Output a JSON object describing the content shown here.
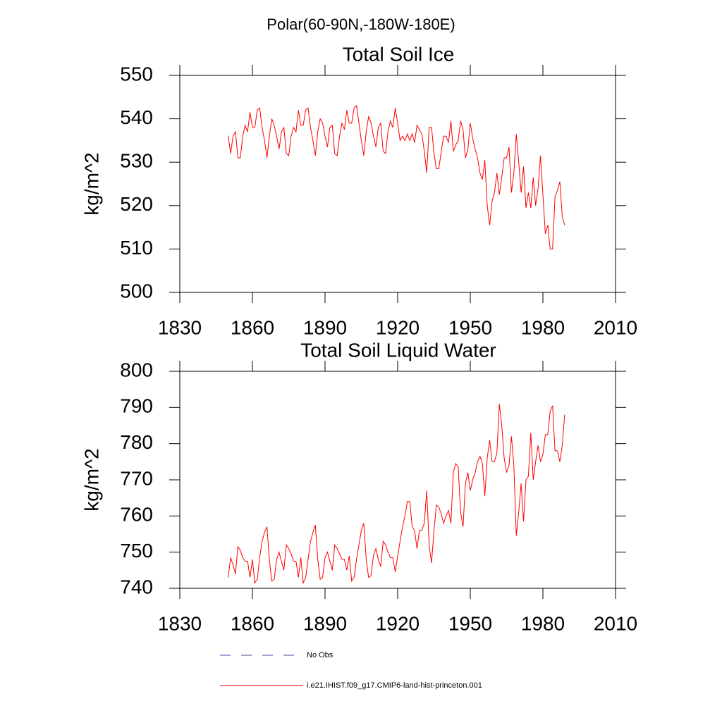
{
  "title": "Polar(60-90N,-180W-180E)",
  "legend": [
    {
      "name": "No Obs",
      "color": "#3b4ba0",
      "dashed": true
    },
    {
      "name": "i.e21.IHIST.f09_g17.CMIP6-land-hist-princeton.001",
      "color": "#ff0000",
      "dashed": false
    }
  ],
  "chart_data": [
    {
      "type": "line",
      "title": "Total Soil Ice",
      "y_label": "kg/m^2",
      "xlim": [
        1830,
        2010
      ],
      "xticks": [
        1830,
        1860,
        1890,
        1920,
        1950,
        1980,
        2010
      ],
      "ylim": [
        500,
        550
      ],
      "yticks": [
        500,
        510,
        520,
        530,
        540,
        550
      ],
      "x": [
        1850,
        1851,
        1852,
        1853,
        1854,
        1855,
        1856,
        1857,
        1858,
        1859,
        1860,
        1861,
        1862,
        1863,
        1864,
        1865,
        1866,
        1867,
        1868,
        1869,
        1870,
        1871,
        1872,
        1873,
        1874,
        1875,
        1876,
        1877,
        1878,
        1879,
        1880,
        1881,
        1882,
        1883,
        1884,
        1885,
        1886,
        1887,
        1888,
        1889,
        1890,
        1891,
        1892,
        1893,
        1894,
        1895,
        1896,
        1897,
        1898,
        1899,
        1900,
        1901,
        1902,
        1903,
        1904,
        1905,
        1906,
        1907,
        1908,
        1909,
        1910,
        1911,
        1912,
        1913,
        1914,
        1915,
        1916,
        1917,
        1918,
        1919,
        1920,
        1921,
        1922,
        1923,
        1924,
        1925,
        1926,
        1927,
        1928,
        1929,
        1930,
        1931,
        1932,
        1933,
        1934,
        1935,
        1936,
        1937,
        1938,
        1939,
        1940,
        1941,
        1942,
        1943,
        1944,
        1945,
        1946,
        1947,
        1948,
        1949,
        1950,
        1951,
        1952,
        1953,
        1954,
        1955,
        1956,
        1957,
        1958,
        1959,
        1960,
        1961,
        1962,
        1963,
        1964,
        1965,
        1966,
        1967,
        1968,
        1969,
        1970,
        1971,
        1972,
        1973,
        1974,
        1975,
        1976,
        1977,
        1978,
        1979,
        1980,
        1981,
        1982,
        1983,
        1984,
        1985,
        1986,
        1987,
        1988,
        1989
      ],
      "series": [
        {
          "color": "#ff0000",
          "values": [
            536,
            532,
            536,
            537,
            531,
            531,
            536,
            538.5,
            537,
            541.5,
            538,
            538,
            542,
            542.5,
            538,
            535,
            531,
            536,
            540,
            538.5,
            536,
            533,
            537,
            538,
            532,
            531.5,
            536,
            538,
            537,
            542,
            538.5,
            538.5,
            542,
            542.5,
            538,
            535,
            531.5,
            537,
            540,
            539,
            536,
            533.5,
            538,
            538.5,
            532,
            531.5,
            536,
            539,
            537.5,
            542,
            539,
            539,
            542.5,
            543,
            539,
            535,
            531.5,
            537,
            540.5,
            539,
            536,
            533.5,
            538,
            539,
            532.5,
            532,
            537,
            539.5,
            538,
            542.5,
            539,
            535,
            536,
            535,
            536.5,
            535,
            536.5,
            534.5,
            538.5,
            537.5,
            536.5,
            532.5,
            527.5,
            538,
            538,
            532,
            528.5,
            528.5,
            532.5,
            536,
            536,
            534.5,
            539.5,
            532.5,
            534,
            535,
            539.5,
            537.5,
            531,
            533,
            539,
            535.5,
            533,
            531,
            527.5,
            526,
            530.5,
            520,
            515.5,
            521,
            523,
            527.5,
            522.5,
            526.5,
            531,
            531,
            533.5,
            523,
            527.5,
            536.5,
            530,
            523,
            529,
            519.5,
            523,
            519.5,
            526.5,
            520,
            524,
            531.5,
            522.5,
            513.5,
            515.5,
            510,
            510,
            522,
            523.5,
            525.5,
            517.5,
            515.5
          ]
        }
      ]
    },
    {
      "type": "line",
      "title": "Total Soil Liquid Water",
      "y_label": "kg/m^2",
      "xlim": [
        1830,
        2010
      ],
      "xticks": [
        1830,
        1860,
        1890,
        1920,
        1950,
        1980,
        2010
      ],
      "ylim": [
        740,
        800
      ],
      "yticks": [
        740,
        750,
        760,
        770,
        780,
        790,
        800
      ],
      "x": [
        1850,
        1851,
        1852,
        1853,
        1854,
        1855,
        1856,
        1857,
        1858,
        1859,
        1860,
        1861,
        1862,
        1863,
        1864,
        1865,
        1866,
        1867,
        1868,
        1869,
        1870,
        1871,
        1872,
        1873,
        1874,
        1875,
        1876,
        1877,
        1878,
        1879,
        1880,
        1881,
        1882,
        1883,
        1884,
        1885,
        1886,
        1887,
        1888,
        1889,
        1890,
        1891,
        1892,
        1893,
        1894,
        1895,
        1896,
        1897,
        1898,
        1899,
        1900,
        1901,
        1902,
        1903,
        1904,
        1905,
        1906,
        1907,
        1908,
        1909,
        1910,
        1911,
        1912,
        1913,
        1914,
        1915,
        1916,
        1917,
        1918,
        1919,
        1920,
        1921,
        1922,
        1923,
        1924,
        1925,
        1926,
        1927,
        1928,
        1929,
        1930,
        1931,
        1932,
        1933,
        1934,
        1935,
        1936,
        1937,
        1938,
        1939,
        1940,
        1941,
        1942,
        1943,
        1944,
        1945,
        1946,
        1947,
        1948,
        1949,
        1950,
        1951,
        1952,
        1953,
        1954,
        1955,
        1956,
        1957,
        1958,
        1959,
        1960,
        1961,
        1962,
        1963,
        1964,
        1965,
        1966,
        1967,
        1968,
        1969,
        1970,
        1971,
        1972,
        1973,
        1974,
        1975,
        1976,
        1977,
        1978,
        1979,
        1980,
        1981,
        1982,
        1983,
        1984,
        1985,
        1986,
        1987,
        1988,
        1989
      ],
      "series": [
        {
          "color": "#ff0000",
          "values": [
            743,
            748.5,
            746.5,
            744,
            751.5,
            750.5,
            748.5,
            747.5,
            747.5,
            743,
            748,
            741.5,
            742.5,
            748.5,
            753,
            755.5,
            757,
            748,
            742,
            742.5,
            748,
            750,
            747.5,
            745,
            752,
            751,
            749.5,
            747.5,
            747.5,
            743,
            748.5,
            741.5,
            743,
            748,
            753,
            755.5,
            757.5,
            748,
            742.5,
            743,
            748.5,
            750,
            747.5,
            745,
            752,
            751,
            749.5,
            748,
            748,
            745,
            749,
            742,
            743,
            748,
            752,
            756,
            758,
            748,
            743,
            743.5,
            749,
            751,
            748,
            746,
            753,
            752,
            750,
            748.5,
            748.5,
            744.5,
            749,
            753,
            757,
            760,
            764,
            764,
            757,
            756,
            751,
            756,
            756,
            758,
            767,
            752,
            747,
            756,
            763,
            762.5,
            760.5,
            758,
            760,
            761.5,
            758,
            772,
            774.5,
            773.5,
            761,
            757,
            769,
            772,
            767,
            770,
            772,
            775,
            776.5,
            774.5,
            765.5,
            776,
            781,
            775,
            775,
            777.5,
            791,
            785,
            776,
            772,
            774,
            782,
            774,
            754.5,
            761,
            769,
            758.5,
            770,
            771,
            783,
            770,
            775,
            779.5,
            775,
            777,
            782.5,
            782.5,
            789,
            790.5,
            778,
            778,
            775,
            779.5,
            788
          ]
        }
      ]
    }
  ]
}
